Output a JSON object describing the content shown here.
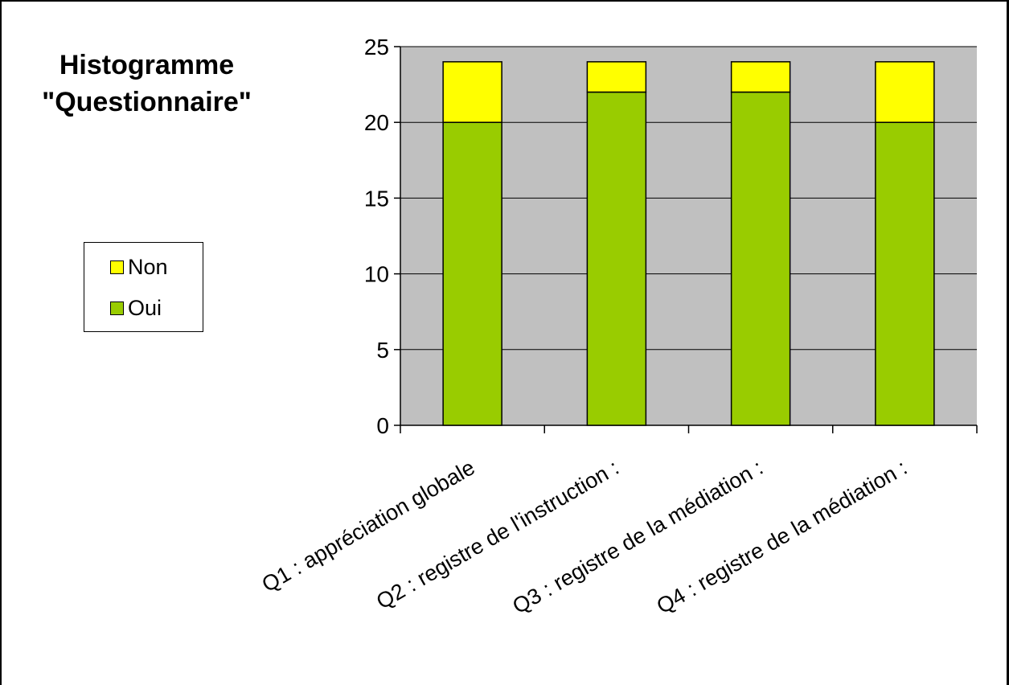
{
  "colors": {
    "plot_background": "#c0c0c0",
    "oui": "#99cc00",
    "non": "#ffff00"
  },
  "title_lines": [
    "Histogramme",
    "\"Questionnaire\""
  ],
  "chart_data": {
    "type": "bar",
    "stacked": true,
    "title": "Histogramme \"Questionnaire\"",
    "categories": [
      "Q1 : appréciation globale",
      "Q2 : registre de l'instruction :",
      "Q3 : registre de la médiation :",
      "Q4 : registre de la médiation :"
    ],
    "series": [
      {
        "name": "Oui",
        "values": [
          20,
          22,
          22,
          20
        ],
        "color": "#99cc00"
      },
      {
        "name": "Non",
        "values": [
          4,
          2,
          2,
          4
        ],
        "color": "#ffff00"
      }
    ],
    "ylim": [
      0,
      25
    ],
    "yticks": [
      0,
      5,
      10,
      15,
      20,
      25
    ],
    "grid": true,
    "legend_position": "left"
  },
  "legend": {
    "items": [
      {
        "label": "Non",
        "color": "#ffff00"
      },
      {
        "label": "Oui",
        "color": "#99cc00"
      }
    ]
  }
}
